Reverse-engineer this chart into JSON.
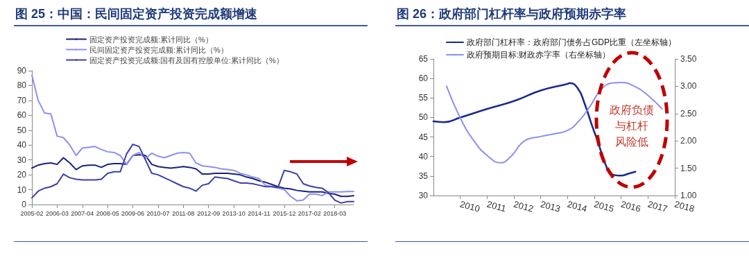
{
  "chart_data": [
    {
      "type": "line",
      "title": "图 25：中国：民间固定资产投资完成额增速",
      "categories": [
        "2005-02",
        null,
        null,
        null,
        "2006-03",
        null,
        null,
        null,
        "2007-04",
        null,
        null,
        null,
        "2008-05",
        null,
        null,
        null,
        "2009-06",
        null,
        null,
        null,
        "2010-07",
        null,
        null,
        null,
        "2011-08",
        null,
        null,
        null,
        "2012-09",
        null,
        null,
        null,
        "2013-10",
        null,
        null,
        null,
        "2014-11",
        null,
        null,
        null,
        "2015-12",
        null,
        null,
        null,
        "2017-02",
        null,
        null,
        null,
        "2018-03",
        null,
        null,
        null
      ],
      "series": [
        {
          "name": "固定资产投资完成额:累计同比（%）",
          "color": "#18207a",
          "values": [
            24.5,
            26.5,
            27.5,
            28,
            27,
            31.5,
            28,
            23.5,
            26,
            26.5,
            26.5,
            25,
            27,
            27.5,
            27.5,
            27,
            33,
            33.5,
            33,
            27,
            25.5,
            25,
            24.5,
            25,
            25.5,
            25,
            24,
            20.5,
            20.5,
            21,
            21,
            21,
            20.5,
            20,
            18.5,
            17.5,
            16,
            15,
            13.5,
            12,
            11,
            10.5,
            9.5,
            9,
            8.5,
            8.5,
            8.5,
            7.5,
            7,
            5.5,
            5.5,
            6
          ]
        },
        {
          "name": "民间固定资产投资完成额:累计同比（%）",
          "color": "#8c8ff0",
          "values": [
            87,
            70,
            61.5,
            61,
            46,
            45,
            40,
            33,
            38,
            38.5,
            39,
            37,
            35.5,
            35,
            33,
            27,
            33,
            35,
            31,
            34.5,
            32.5,
            31.5,
            33,
            34.5,
            35,
            34.5,
            28,
            26,
            25.5,
            25,
            24,
            23.5,
            23,
            21,
            20,
            18.5,
            17.5,
            13,
            12,
            11,
            10,
            5.5,
            2.5,
            3,
            7,
            7,
            6,
            8.5,
            8.5,
            8.5,
            8.7,
            8.7
          ]
        },
        {
          "name": "固定资产投资完成额:国有及国有控股单位:累计同比（%）",
          "color": "#3c3fa8",
          "values": [
            4.5,
            9,
            11,
            12,
            14,
            20.5,
            18,
            17,
            16.5,
            16.5,
            16.5,
            17,
            21,
            22,
            22,
            34,
            40.5,
            39,
            30,
            21,
            20,
            18,
            16,
            14,
            12,
            11,
            9,
            13,
            14,
            18.5,
            18,
            17.5,
            16,
            14.5,
            14.5,
            14,
            13,
            12,
            12,
            11.5,
            23,
            22,
            20.5,
            14,
            12.5,
            11.5,
            11,
            8,
            3,
            1,
            2,
            2
          ]
        }
      ],
      "ylim": [
        0,
        90
      ],
      "yticks": [
        0,
        10,
        20,
        30,
        40,
        50,
        60,
        70,
        80,
        90
      ],
      "grid": false,
      "legend": "top"
    },
    {
      "type": "line",
      "title": "图 26：政府部门杠杆率与政府预期赤字率",
      "series": [
        {
          "name": "政府部门杠杆率：政府部门债务占GDP比重（左坐标轴）",
          "color": "#1a2a8c",
          "x": [
            2009.0,
            2009.39,
            2010.0,
            2011.01,
            2012.0,
            2013.0,
            2014.0,
            2014.08,
            2014.38,
            2014.64,
            2014.9,
            2015.15,
            2015.41,
            2015.67,
            2016.0,
            2016.27,
            2016.53
          ],
          "values": [
            49.0,
            48.8,
            50.0,
            52.2,
            54.2,
            56.9,
            58.6,
            58.8,
            57.5,
            53.5,
            48.2,
            43.4,
            38.1,
            35.4,
            35.1,
            35.6,
            36.1
          ]
        },
        {
          "name": "政府预期目标:财政赤字率（右坐标轴）",
          "color": "#8c8ff0",
          "axis": "y2",
          "x": [
            2009.49,
            2010.0,
            2010.51,
            2011.01,
            2011.5,
            2011.88,
            2012.4,
            2013.0,
            2013.52,
            2014.0,
            2014.38,
            2014.81,
            2015.24,
            2015.67,
            2016.0,
            2016.53,
            2016.96,
            2017.52
          ],
          "values": [
            3.0,
            2.42,
            2.0,
            1.73,
            1.6,
            1.71,
            2.0,
            2.08,
            2.13,
            2.19,
            2.34,
            2.61,
            2.93,
            3.06,
            3.07,
            2.99,
            2.85,
            2.59
          ]
        }
      ],
      "xlim": [
        2009,
        2018
      ],
      "xticks": [
        2010,
        2011,
        2012,
        2013,
        2014,
        2015,
        2016,
        2017,
        2018
      ],
      "ylim": [
        30,
        65
      ],
      "yticks": [
        30,
        35,
        40,
        45,
        50,
        55,
        60,
        65
      ],
      "y2lim": [
        1,
        3.5
      ],
      "y2ticks": [
        {
          "value": 1,
          "label": "1.00"
        },
        {
          "value": 1.5,
          "label": "1.50"
        },
        {
          "value": 2,
          "label": "2.00"
        },
        {
          "value": 2.5,
          "label": "2.50"
        },
        {
          "value": 3,
          "label": "3.00"
        },
        {
          "value": 3.5,
          "label": "3.50"
        }
      ],
      "annotations": [
        "政府负债",
        "与杠杆",
        "风险低"
      ],
      "grid": false,
      "legend": "top left"
    }
  ]
}
